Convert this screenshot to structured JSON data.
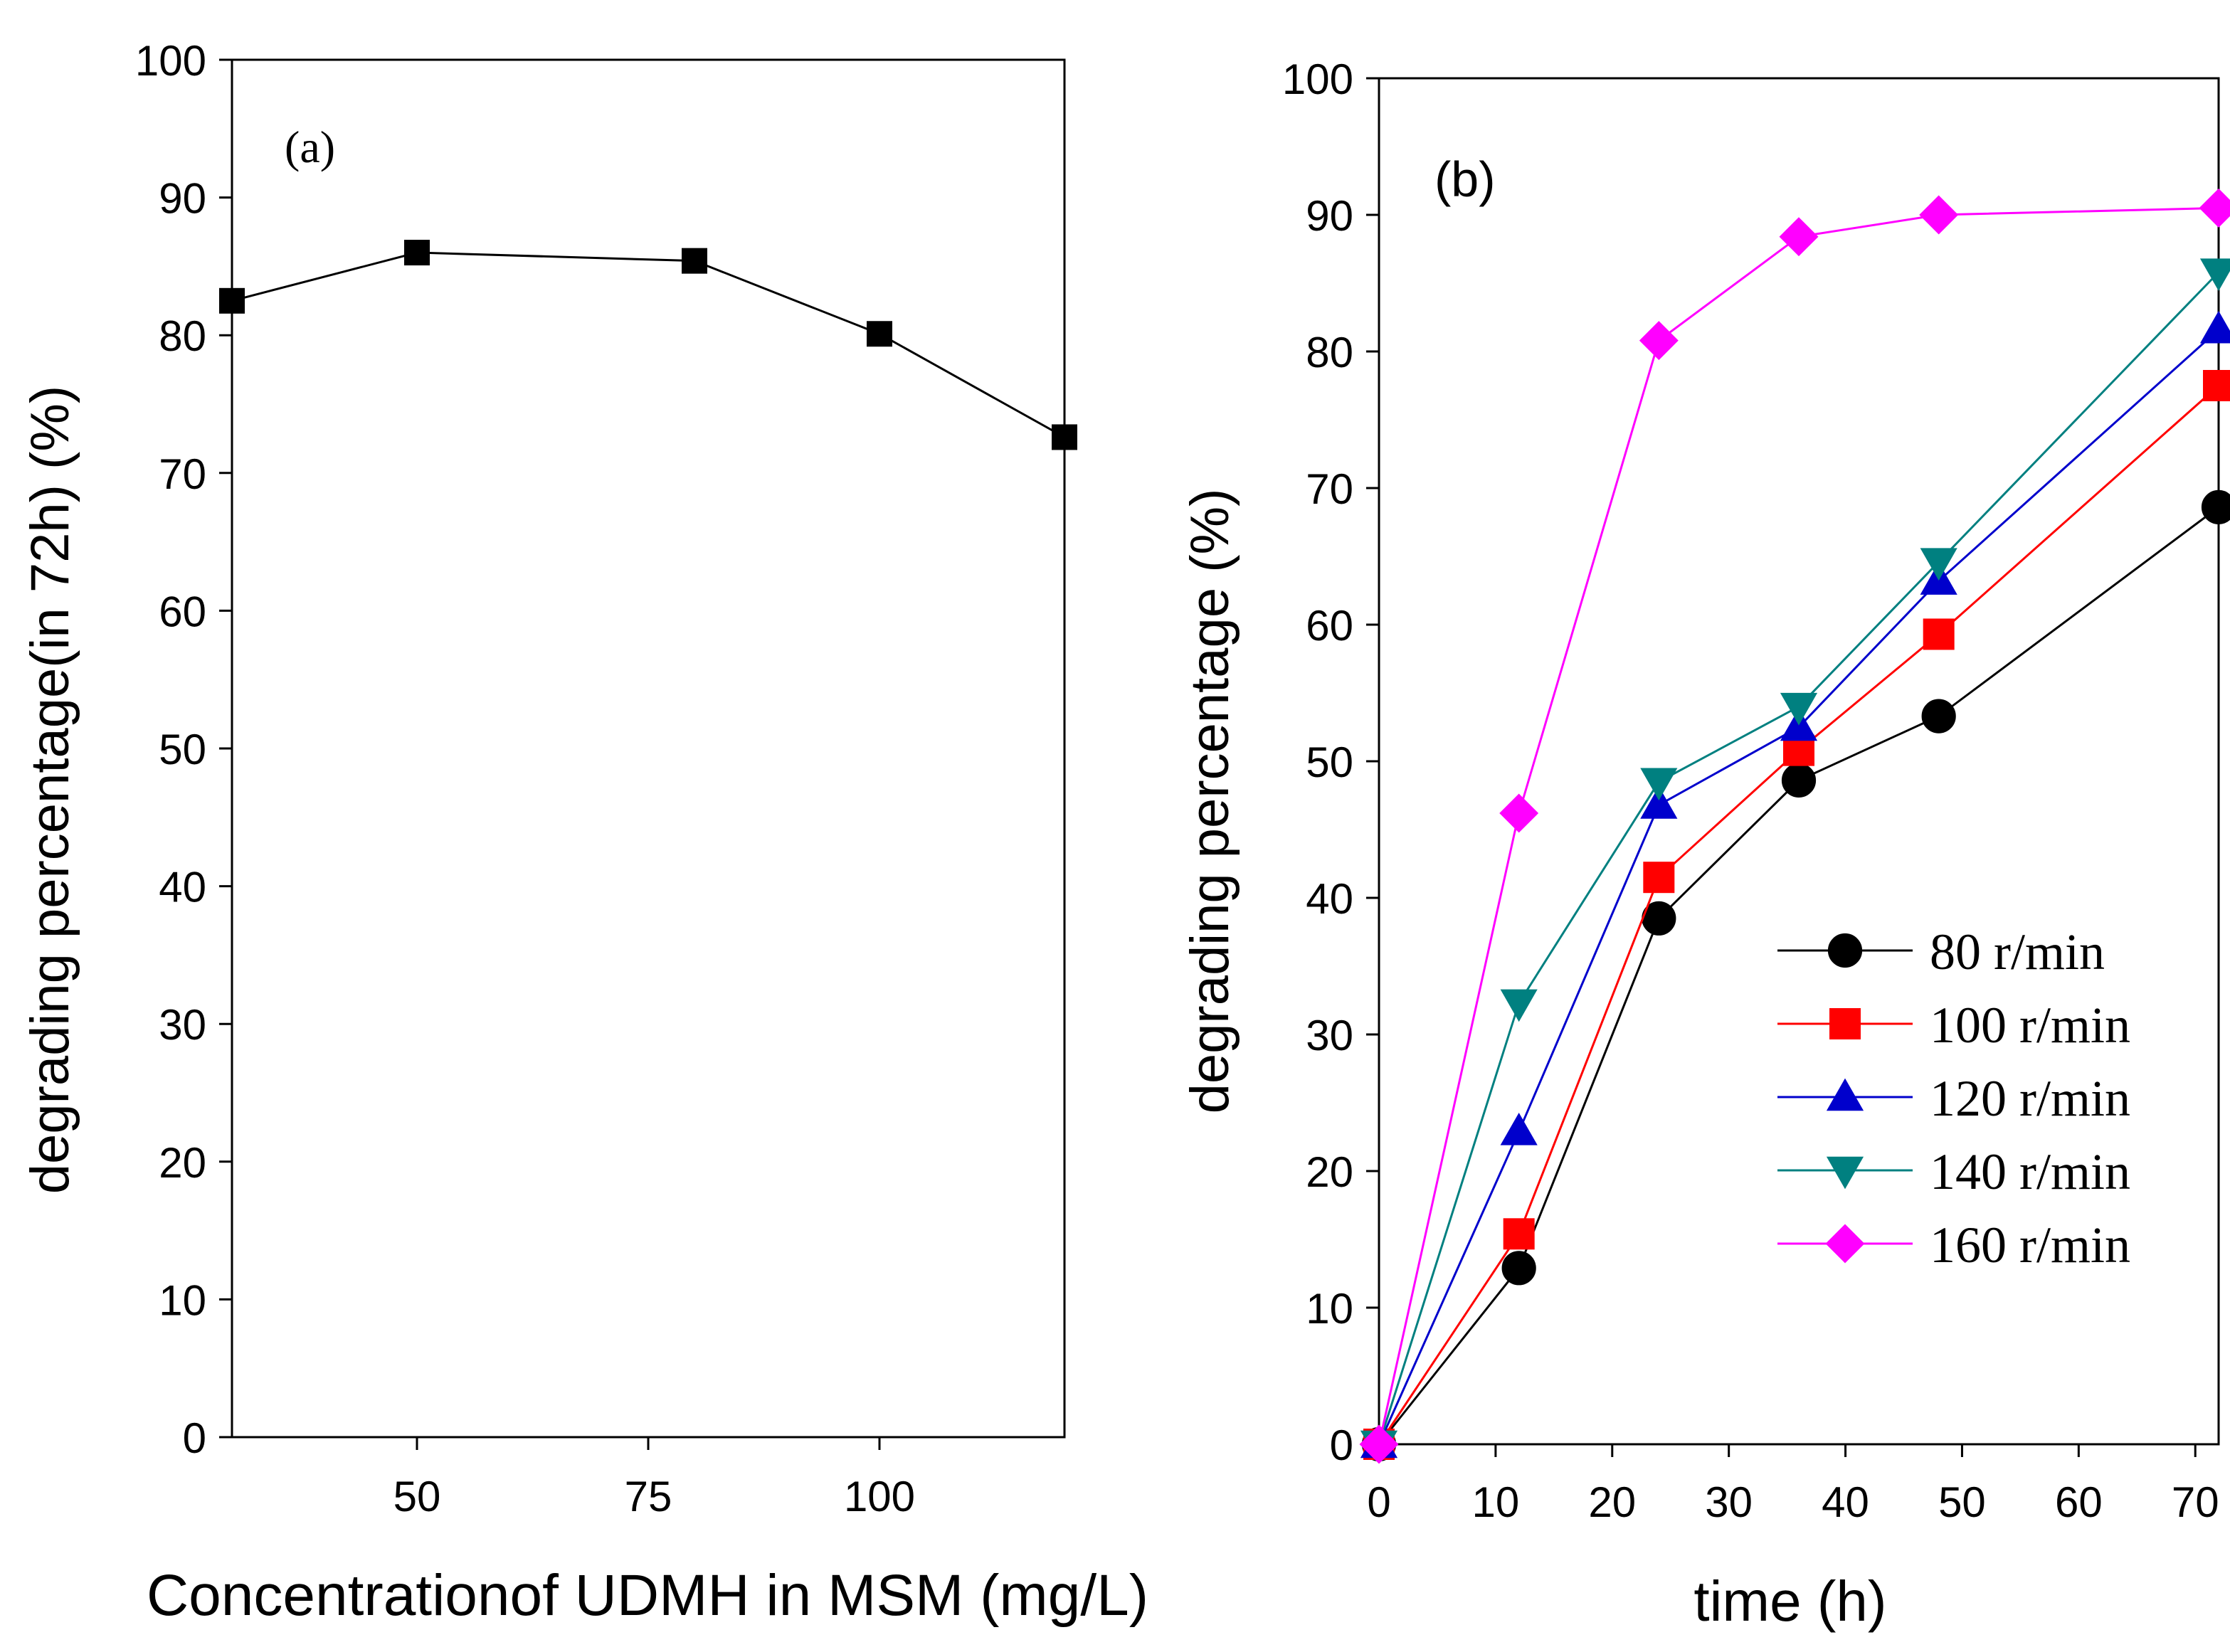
{
  "chart_data": [
    {
      "panel_label": "(a)",
      "type": "line",
      "xlabel": "Concentrationof UDMH in MSM (mg/L)",
      "ylabel": "degrading percentage(in 72h) (%)",
      "xlim": [
        30,
        120
      ],
      "ylim": [
        0,
        100
      ],
      "xticks": [
        50,
        75,
        100
      ],
      "yticks": [
        0,
        10,
        20,
        30,
        40,
        50,
        60,
        70,
        80,
        90,
        100
      ],
      "grid": false,
      "series": [
        {
          "name": "degrading percentage",
          "color": "#000000",
          "marker": "square",
          "x": [
            30,
            50,
            80,
            100,
            120
          ],
          "y": [
            82.5,
            86,
            85.4,
            80.1,
            72.6
          ]
        }
      ]
    },
    {
      "panel_label": "(b)",
      "type": "line",
      "xlabel": "time (h)",
      "ylabel": "degrading percentage (%)",
      "xlim": [
        0,
        72
      ],
      "ylim": [
        0,
        100
      ],
      "xticks": [
        0,
        10,
        20,
        30,
        40,
        50,
        60,
        70
      ],
      "yticks": [
        0,
        10,
        20,
        30,
        40,
        50,
        60,
        70,
        80,
        90,
        100
      ],
      "grid": false,
      "legend_position": "lower-right",
      "series": [
        {
          "name": "80 r/min",
          "color": "#000000",
          "marker": "circle",
          "x": [
            0,
            12,
            24,
            36,
            48,
            72
          ],
          "y": [
            0,
            12.9,
            38.5,
            48.6,
            53.3,
            68.6
          ]
        },
        {
          "name": "100 r/min",
          "color": "#ff0000",
          "marker": "square",
          "x": [
            0,
            12,
            24,
            36,
            48,
            72
          ],
          "y": [
            0,
            15.4,
            41.5,
            50.8,
            59.3,
            77.5
          ]
        },
        {
          "name": "120 r/min",
          "color": "#0000cc",
          "marker": "triangle-up",
          "x": [
            0,
            12,
            24,
            36,
            48,
            72
          ],
          "y": [
            0,
            22.9,
            46.8,
            52.5,
            63.2,
            81.6
          ]
        },
        {
          "name": "140 r/min",
          "color": "#008080",
          "marker": "triangle-down",
          "x": [
            0,
            12,
            24,
            36,
            48,
            72
          ],
          "y": [
            0,
            32.3,
            48.5,
            54.0,
            64.6,
            85.8
          ]
        },
        {
          "name": "160 r/min",
          "color": "#ff00ff",
          "marker": "diamond",
          "x": [
            0,
            12,
            24,
            36,
            48,
            72
          ],
          "y": [
            0,
            46.2,
            80.8,
            88.4,
            90.0,
            90.5
          ]
        }
      ]
    }
  ]
}
